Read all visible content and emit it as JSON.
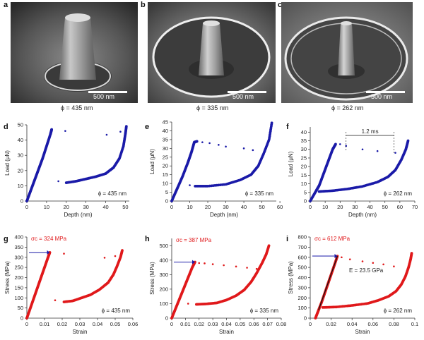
{
  "figure": {
    "panel_letters": [
      "a",
      "b",
      "c",
      "d",
      "e",
      "f",
      "g",
      "h",
      "i"
    ],
    "sem_images": [
      {
        "letter": "a",
        "scale_bar": "500 nm",
        "caption": "ϕ = 435 nm"
      },
      {
        "letter": "b",
        "scale_bar": "500 nm",
        "caption": "ϕ = 335 nm"
      },
      {
        "letter": "c",
        "scale_bar": "500 nm",
        "caption": "ϕ = 262 nm"
      }
    ]
  },
  "chart_data": [
    {
      "id": "d",
      "type": "scatter",
      "xlabel": "Depth (nm)",
      "ylabel": "Load (μN)",
      "xlim": [
        0,
        52
      ],
      "ylim": [
        0,
        50
      ],
      "xticks": [
        0,
        10,
        20,
        30,
        40,
        50
      ],
      "yticks": [
        0,
        10,
        20,
        30,
        40,
        50
      ],
      "color": "#1a1aa8",
      "annotation": "ϕ = 435 nm",
      "loading": [
        [
          0,
          0
        ],
        [
          2,
          7
        ],
        [
          4,
          14
        ],
        [
          6,
          21
        ],
        [
          8,
          28
        ],
        [
          10,
          36
        ],
        [
          12,
          44
        ],
        [
          12.6,
          47
        ]
      ],
      "unloading": [
        [
          20,
          12
        ],
        [
          25,
          13
        ],
        [
          30,
          14.5
        ],
        [
          35,
          16
        ],
        [
          40,
          18
        ],
        [
          44,
          22
        ],
        [
          47,
          28
        ],
        [
          49,
          36
        ],
        [
          50,
          44
        ],
        [
          50.5,
          49
        ]
      ],
      "jumps": [
        [
          16,
          13
        ],
        [
          19.5,
          46
        ],
        [
          40.5,
          43.5
        ],
        [
          47.5,
          45.5
        ]
      ]
    },
    {
      "id": "e",
      "type": "scatter",
      "xlabel": "Depth (nm)",
      "ylabel": "Load (μN)",
      "xlim": [
        0,
        58
      ],
      "ylim": [
        0,
        45
      ],
      "xticks": [
        0,
        10,
        20,
        30,
        40,
        50,
        60
      ],
      "yticks": [
        0,
        5,
        10,
        15,
        20,
        25,
        30,
        35,
        40,
        45
      ],
      "color": "#1a1aa8",
      "annotation": "ϕ = 335 nm",
      "loading": [
        [
          0,
          0
        ],
        [
          3,
          7
        ],
        [
          6,
          14
        ],
        [
          9,
          22
        ],
        [
          11,
          28
        ],
        [
          12.5,
          33.5
        ],
        [
          14,
          34
        ]
      ],
      "unloading": [
        [
          13,
          8.5
        ],
        [
          20,
          8.5
        ],
        [
          30,
          9.5
        ],
        [
          38,
          12
        ],
        [
          44,
          15
        ],
        [
          48,
          20
        ],
        [
          51,
          27
        ],
        [
          54,
          35
        ],
        [
          55.5,
          44.5
        ]
      ],
      "jumps": [
        [
          17,
          33.5
        ],
        [
          21,
          33
        ],
        [
          26,
          32
        ],
        [
          30,
          31
        ],
        [
          40,
          30
        ],
        [
          45,
          29
        ],
        [
          10,
          9
        ]
      ]
    },
    {
      "id": "f",
      "type": "scatter",
      "xlabel": "Depth (nm)",
      "ylabel": "Load (μN)",
      "xlim": [
        0,
        70
      ],
      "ylim": [
        0,
        43
      ],
      "xticks": [
        0,
        10,
        20,
        30,
        40,
        50,
        60,
        70
      ],
      "yticks": [
        0,
        5,
        10,
        15,
        20,
        25,
        30,
        35,
        40
      ],
      "color": "#1a1aa8",
      "annotation": "ϕ = 262 nm",
      "time_label": "1.2 ms",
      "loading": [
        [
          0,
          0
        ],
        [
          4,
          6
        ],
        [
          6,
          9
        ],
        [
          9,
          16
        ],
        [
          12,
          23
        ],
        [
          15,
          30
        ],
        [
          17,
          33
        ]
      ],
      "unloading": [
        [
          6,
          5.5
        ],
        [
          15,
          6
        ],
        [
          25,
          7
        ],
        [
          35,
          8.5
        ],
        [
          45,
          11
        ],
        [
          52,
          14
        ],
        [
          57,
          18
        ],
        [
          61,
          24
        ],
        [
          64,
          30
        ],
        [
          65.5,
          35
        ]
      ],
      "jumps": [
        [
          20,
          33
        ],
        [
          24,
          32
        ],
        [
          35,
          30
        ],
        [
          45,
          29
        ],
        [
          57,
          28
        ]
      ]
    },
    {
      "id": "g",
      "type": "scatter",
      "xlabel": "Strain",
      "ylabel": "Stress (MPa)",
      "xlim": [
        0,
        0.06
      ],
      "ylim": [
        0,
        400
      ],
      "xticks": [
        "0",
        "0.01",
        "0.02",
        "0.03",
        "0.04",
        "0.05",
        "0.06"
      ],
      "yticks": [
        0,
        50,
        100,
        150,
        200,
        250,
        300,
        350,
        400
      ],
      "color": "#e0191b",
      "annotation": "ϕ = 435 nm",
      "sigma_label": "σc = 324 MPa",
      "loading": [
        [
          0,
          0
        ],
        [
          0.002,
          50
        ],
        [
          0.004,
          100
        ],
        [
          0.006,
          150
        ],
        [
          0.008,
          200
        ],
        [
          0.01,
          250
        ],
        [
          0.012,
          300
        ],
        [
          0.013,
          324
        ]
      ],
      "unloading": [
        [
          0.021,
          80
        ],
        [
          0.026,
          85
        ],
        [
          0.031,
          100
        ],
        [
          0.036,
          115
        ],
        [
          0.041,
          140
        ],
        [
          0.046,
          175
        ],
        [
          0.049,
          215
        ],
        [
          0.051,
          255
        ],
        [
          0.053,
          300
        ],
        [
          0.054,
          334
        ]
      ],
      "jumps": [
        [
          0.016,
          88
        ],
        [
          0.021,
          318
        ],
        [
          0.044,
          298
        ],
        [
          0.05,
          306
        ]
      ]
    },
    {
      "id": "h",
      "type": "scatter",
      "xlabel": "Strain",
      "ylabel": "Stress (MPa)",
      "xlim": [
        0,
        0.08
      ],
      "ylim": [
        0,
        550
      ],
      "xticks": [
        "0",
        "0.01",
        "0.02",
        "0.03",
        "0.04",
        "0.05",
        "0.06",
        "0.07",
        "0.08"
      ],
      "yticks": [
        0,
        100,
        200,
        300,
        400,
        500
      ],
      "color": "#e0191b",
      "annotation": "ϕ = 335 nm",
      "sigma_label": "σc = 387 MPa",
      "loading": [
        [
          0,
          0
        ],
        [
          0.003,
          70
        ],
        [
          0.006,
          140
        ],
        [
          0.009,
          210
        ],
        [
          0.012,
          280
        ],
        [
          0.015,
          350
        ],
        [
          0.017,
          387
        ]
      ],
      "unloading": [
        [
          0.018,
          95
        ],
        [
          0.025,
          98
        ],
        [
          0.033,
          105
        ],
        [
          0.04,
          125
        ],
        [
          0.047,
          155
        ],
        [
          0.053,
          195
        ],
        [
          0.058,
          250
        ],
        [
          0.062,
          310
        ],
        [
          0.066,
          380
        ],
        [
          0.069,
          440
        ],
        [
          0.071,
          500
        ]
      ],
      "jumps": [
        [
          0.02,
          380
        ],
        [
          0.024,
          378
        ],
        [
          0.03,
          372
        ],
        [
          0.038,
          365
        ],
        [
          0.047,
          356
        ],
        [
          0.055,
          348
        ],
        [
          0.062,
          340
        ],
        [
          0.012,
          100
        ]
      ]
    },
    {
      "id": "i",
      "type": "scatter",
      "xlabel": "Strain",
      "ylabel": "Stress (MPa)",
      "xlim": [
        0,
        0.1
      ],
      "ylim": [
        0,
        800
      ],
      "xticks": [
        "0",
        "0.02",
        "0.04",
        "0.06",
        "0.08",
        "0.1"
      ],
      "yticks": [
        0,
        100,
        200,
        300,
        400,
        500,
        600,
        700,
        800
      ],
      "color": "#e0191b",
      "annotation": "ϕ = 262 nm",
      "sigma_label": "σc = 612 MPa",
      "modulus_label": "E = 23.5 GPa",
      "loading": [
        [
          0.005,
          0
        ],
        [
          0.008,
          80
        ],
        [
          0.011,
          160
        ],
        [
          0.014,
          250
        ],
        [
          0.017,
          340
        ],
        [
          0.02,
          430
        ],
        [
          0.023,
          520
        ],
        [
          0.026,
          612
        ]
      ],
      "unloading": [
        [
          0.012,
          105
        ],
        [
          0.025,
          110
        ],
        [
          0.04,
          125
        ],
        [
          0.055,
          145
        ],
        [
          0.065,
          175
        ],
        [
          0.075,
          215
        ],
        [
          0.082,
          265
        ],
        [
          0.087,
          330
        ],
        [
          0.091,
          410
        ],
        [
          0.094,
          500
        ],
        [
          0.096,
          580
        ],
        [
          0.097,
          640
        ]
      ],
      "jumps": [
        [
          0.03,
          600
        ],
        [
          0.038,
          580
        ],
        [
          0.05,
          560
        ],
        [
          0.06,
          545
        ],
        [
          0.07,
          530
        ],
        [
          0.08,
          510
        ]
      ]
    }
  ]
}
